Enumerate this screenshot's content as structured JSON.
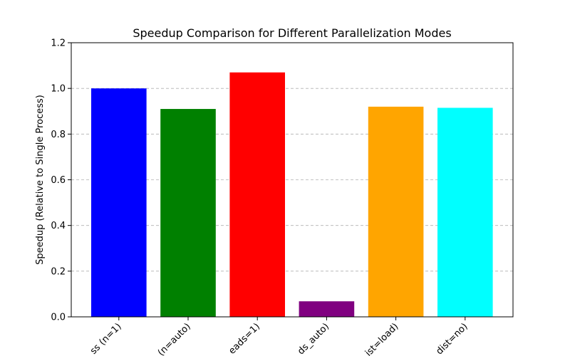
{
  "chart_data": {
    "type": "bar",
    "title": "Speedup Comparison for Different Parallelization Modes",
    "xlabel": "",
    "ylabel": "Speedup (Relative to Single Process)",
    "ylim": [
      0,
      1.2
    ],
    "yticks": [
      "0.0",
      "0.2",
      "0.4",
      "0.6",
      "0.8",
      "1.0",
      "1.2"
    ],
    "grid": "y-dashed",
    "categories": [
      "ss (n=1)",
      "(n=auto)",
      "eads=1)",
      "ds_auto)",
      "ist=load)",
      "dist=no)"
    ],
    "values": [
      1.0,
      0.91,
      1.07,
      0.068,
      0.92,
      0.915
    ],
    "colors": [
      "#0000ff",
      "#008000",
      "#ff0000",
      "#800080",
      "#ffa500",
      "#00ffff"
    ]
  }
}
